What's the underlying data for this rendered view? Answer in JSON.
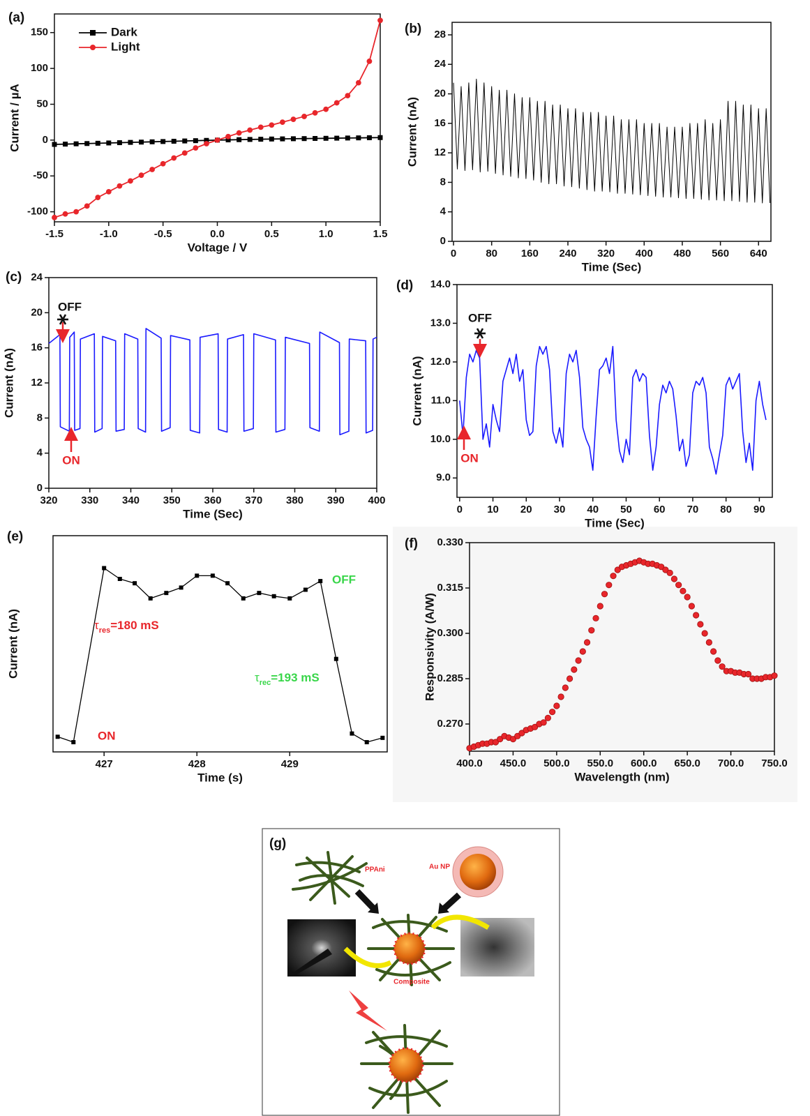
{
  "chart_data": [
    {
      "type": "line",
      "panel_label": "(a)",
      "x_label": "Voltage / V",
      "y_label": "Current / µA",
      "xlim": [
        -1.5,
        1.5
      ],
      "ylim": [
        -114,
        176
      ],
      "xticks": [
        -1.5,
        {
          "value": -1,
          "label": "-1.0"
        },
        -0.5,
        {
          "value": 0,
          "label": "0.0"
        },
        0.5,
        {
          "value": 1,
          "label": "1.0"
        },
        1.5
      ],
      "yticks": [
        -100,
        -50,
        0,
        50,
        100,
        150
      ],
      "legend": "upper left",
      "x": [
        -1.5,
        -1.4,
        -1.3,
        -1.2,
        -1.1,
        -1.0,
        -0.9,
        -0.8,
        -0.7,
        -0.6,
        -0.5,
        -0.4,
        -0.3,
        -0.2,
        -0.1,
        0,
        0.1,
        0.2,
        0.3,
        0.4,
        0.5,
        0.6,
        0.7,
        0.8,
        0.9,
        1.0,
        1.1,
        1.2,
        1.3,
        1.4,
        1.5
      ],
      "series": [
        {
          "name": "Dark",
          "color": "#000000",
          "marker": "square",
          "values": [
            -6,
            -5.6,
            -5.2,
            -4.8,
            -4.4,
            -4,
            -3.6,
            -3.2,
            -2.8,
            -2.4,
            -2,
            -1.6,
            -1.2,
            -0.8,
            -0.4,
            0,
            0.3,
            0.6,
            0.9,
            1.2,
            1.5,
            1.7,
            1.9,
            2.1,
            2.3,
            2.5,
            2.7,
            2.9,
            3.1,
            3.3,
            3.5
          ]
        },
        {
          "name": "Light",
          "color": "#e8262b",
          "marker": "circle",
          "values": [
            -108,
            -103,
            -100,
            -92,
            -80,
            -72,
            -64,
            -57,
            -49,
            -41,
            -33,
            -25,
            -18,
            -11,
            -5,
            0,
            5,
            10,
            14,
            18,
            21,
            25,
            29,
            33,
            38,
            43,
            52,
            62,
            80,
            110,
            167
          ]
        }
      ]
    },
    {
      "type": "line",
      "panel_label": "(b)",
      "x_label": "Time (Sec)",
      "y_label": "Current (nA)",
      "xlim": [
        -3,
        666
      ],
      "ylim": [
        0,
        29.7
      ],
      "xticks": [
        0,
        80,
        160,
        240,
        320,
        400,
        480,
        560,
        640
      ],
      "yticks": [
        0,
        4,
        8,
        12,
        16,
        20,
        24,
        28
      ],
      "x": [
        0,
        8,
        16,
        24,
        32,
        40,
        48,
        56,
        64,
        72,
        80,
        88,
        96,
        104,
        112,
        120,
        128,
        136,
        144,
        152,
        160,
        168,
        176,
        184,
        192,
        200,
        208,
        216,
        224,
        232,
        240,
        248,
        256,
        264,
        272,
        280,
        288,
        296,
        304,
        312,
        320,
        328,
        336,
        344,
        352,
        360,
        368,
        376,
        384,
        392,
        400,
        408,
        416,
        424,
        432,
        440,
        448,
        456,
        464,
        472,
        480,
        488,
        496,
        504,
        512,
        520,
        528,
        536,
        544,
        552,
        560,
        568,
        576,
        584,
        592,
        600,
        608,
        616,
        624,
        632,
        640,
        648,
        656,
        664
      ],
      "series": [
        {
          "color": "#000000",
          "values": [
            21.5,
            9.8,
            21,
            9.6,
            21.5,
            9.7,
            22,
            9.4,
            21.5,
            9.5,
            21,
            9.2,
            20.5,
            9.0,
            20.5,
            8.8,
            20,
            8.6,
            19.5,
            8.5,
            19.5,
            8.3,
            19,
            8.0,
            19,
            7.8,
            18.5,
            7.8,
            18.5,
            7.5,
            18,
            7.4,
            18,
            7.2,
            17.5,
            7.0,
            17.5,
            6.8,
            17.5,
            6.8,
            17,
            6.7,
            17,
            6.5,
            16.5,
            6.5,
            16.5,
            6.4,
            16.5,
            6.3,
            16,
            6.2,
            16,
            6.1,
            16,
            6.0,
            15.5,
            6.0,
            15.5,
            5.9,
            15.5,
            5.8,
            16,
            5.8,
            16,
            5.7,
            16.5,
            5.6,
            16,
            5.6,
            16.5,
            5.5,
            19,
            5.5,
            19,
            5.4,
            18.5,
            5.3,
            18.5,
            5.3,
            18,
            5.2,
            18,
            5.2
          ]
        }
      ]
    },
    {
      "type": "line",
      "panel_label": "(c)",
      "x_label": "Time (Sec)",
      "y_label": "Current (nA)",
      "xlim": [
        320,
        400
      ],
      "ylim": [
        0,
        24
      ],
      "xticks": [
        320,
        330,
        340,
        350,
        360,
        370,
        380,
        390,
        400
      ],
      "yticks": [
        0,
        4,
        8,
        12,
        16,
        20,
        24
      ],
      "annotations": [
        {
          "text": "OFF",
          "color": "#111111"
        },
        {
          "text": "ON",
          "color": "#e8262b"
        }
      ],
      "x": [
        320,
        322.7,
        322.8,
        325.0,
        325.1,
        326.2,
        326.3,
        327.6,
        327.7,
        331.1,
        331.2,
        333.0,
        333.1,
        336.3,
        336.4,
        338.4,
        338.5,
        341.7,
        341.8,
        343.6,
        343.7,
        347.4,
        347.5,
        349.6,
        349.7,
        354.4,
        354.5,
        356.8,
        356.9,
        361.3,
        361.4,
        363.5,
        363.6,
        367.5,
        367.6,
        369.9,
        370.0,
        375.3,
        375.4,
        377.6,
        377.7,
        383.6,
        383.7,
        386.0,
        386.1,
        390.9,
        391.0,
        393.2,
        393.3,
        397.3,
        397.4,
        399.0,
        399.1,
        400
      ],
      "series": [
        {
          "color": "#1a1aff",
          "values": [
            16.5,
            17.5,
            7.0,
            6.5,
            17.2,
            17.8,
            6.6,
            6.8,
            17.0,
            17.6,
            6.4,
            6.8,
            17.3,
            16.8,
            6.5,
            6.7,
            17.6,
            17.0,
            6.8,
            6.4,
            18.2,
            17.1,
            6.5,
            6.9,
            17.4,
            16.9,
            6.6,
            6.3,
            17.2,
            17.6,
            6.7,
            6.4,
            17.0,
            17.5,
            6.5,
            6.8,
            17.6,
            16.9,
            6.4,
            6.7,
            17.2,
            16.5,
            6.9,
            6.5,
            17.8,
            16.6,
            6.1,
            6.5,
            17.0,
            16.8,
            6.3,
            6.6,
            17.0,
            17.2
          ]
        }
      ]
    },
    {
      "type": "line",
      "panel_label": "(d)",
      "x_label": "Time (Sec)",
      "y_label": "Current (nA)",
      "xlim": [
        -0.8,
        93.9
      ],
      "ylim": [
        8.5,
        14.0
      ],
      "xticks": [
        0,
        10,
        20,
        30,
        40,
        50,
        60,
        70,
        80,
        90
      ],
      "yticks": [
        {
          "value": 9,
          "label": "9.0"
        },
        {
          "value": 10,
          "label": "10.0"
        },
        {
          "value": 11,
          "label": "11.0"
        },
        {
          "value": 12,
          "label": "12.0"
        },
        {
          "value": 13,
          "label": "13.0"
        },
        {
          "value": 14,
          "label": "14.0"
        }
      ],
      "annotations": [
        {
          "text": "OFF",
          "color": "#111111"
        },
        {
          "text": "ON",
          "color": "#e8262b"
        }
      ],
      "x": [
        0,
        1,
        2,
        3,
        4,
        5,
        6,
        7,
        8,
        9,
        10,
        11,
        12,
        13,
        14,
        15,
        16,
        17,
        18,
        19,
        20,
        21,
        22,
        23,
        24,
        25,
        26,
        27,
        28,
        29,
        30,
        31,
        32,
        33,
        34,
        35,
        36,
        37,
        38,
        39,
        40,
        41,
        42,
        43,
        44,
        45,
        46,
        47,
        48,
        49,
        50,
        51,
        52,
        53,
        54,
        55,
        56,
        57,
        58,
        59,
        60,
        61,
        62,
        63,
        64,
        65,
        66,
        67,
        68,
        69,
        70,
        71,
        72,
        73,
        74,
        75,
        76,
        77,
        78,
        79,
        80,
        81,
        82,
        83,
        84,
        85,
        86,
        87,
        88,
        89,
        90,
        91,
        92
      ],
      "series": [
        {
          "color": "#1a1aff",
          "values": [
            11.0,
            10.1,
            11.6,
            12.2,
            12.0,
            12.3,
            12.1,
            10.0,
            10.4,
            9.8,
            10.9,
            10.5,
            10.2,
            11.5,
            11.8,
            12.1,
            11.7,
            12.2,
            11.5,
            11.8,
            10.5,
            10.1,
            10.2,
            11.9,
            12.4,
            12.2,
            12.4,
            11.8,
            10.2,
            9.9,
            10.3,
            9.8,
            11.7,
            12.2,
            12.0,
            12.3,
            11.6,
            10.3,
            10.0,
            9.8,
            9.2,
            10.6,
            11.8,
            11.9,
            12.1,
            11.7,
            12.4,
            10.5,
            9.7,
            9.4,
            10.0,
            9.6,
            11.6,
            11.8,
            11.5,
            11.7,
            11.6,
            10.1,
            9.2,
            9.8,
            10.9,
            11.4,
            11.2,
            11.5,
            11.3,
            10.6,
            9.7,
            10.0,
            9.3,
            9.6,
            11.2,
            11.5,
            11.4,
            11.6,
            11.2,
            9.8,
            9.5,
            9.1,
            9.6,
            10.1,
            11.4,
            11.6,
            11.3,
            11.5,
            11.7,
            10.2,
            9.4,
            9.9,
            9.2,
            11.0,
            11.5,
            10.9,
            10.5
          ]
        }
      ]
    },
    {
      "type": "line",
      "panel_label": "(e)",
      "x_label": "Time (s)",
      "y_label": "Current (nA)",
      "xlim": [
        426.45,
        430.05
      ],
      "ylim": [
        0,
        1
      ],
      "xticks": [
        427,
        428,
        429
      ],
      "annotations": [
        {
          "text": "ON",
          "color": "#e8262b"
        },
        {
          "text": "OFF",
          "color": "#39d64a"
        },
        {
          "symbol": "τ",
          "sub": "res",
          "text": "=180 mS",
          "color": "#e8262b"
        },
        {
          "symbol": "τ",
          "sub": "rec",
          "text": "=193 mS",
          "color": "#39d64a"
        }
      ],
      "x": [
        426.5,
        426.67,
        427.0,
        427.17,
        427.33,
        427.5,
        427.67,
        427.83,
        428.0,
        428.17,
        428.33,
        428.5,
        428.67,
        428.83,
        429.0,
        429.17,
        429.33,
        429.5,
        429.67,
        429.83,
        430.0
      ],
      "series": [
        {
          "color": "#000000",
          "marker": "square",
          "values": [
            0.07,
            0.045,
            0.85,
            0.8,
            0.78,
            0.71,
            0.735,
            0.76,
            0.815,
            0.815,
            0.78,
            0.71,
            0.735,
            0.72,
            0.71,
            0.75,
            0.79,
            0.43,
            0.085,
            0.045,
            0.065
          ]
        }
      ]
    },
    {
      "type": "scatter",
      "panel_label": "(f)",
      "x_label": "Wavelength (nm)",
      "y_label": "Responsivity (A/W)",
      "xlim": [
        400,
        750
      ],
      "ylim": [
        0.261,
        0.33
      ],
      "xticks": [
        {
          "value": 400,
          "label": "400.0"
        },
        {
          "value": 450,
          "label": "450.0"
        },
        {
          "value": 500,
          "label": "500.0"
        },
        {
          "value": 550,
          "label": "550.0"
        },
        {
          "value": 600,
          "label": "600.0"
        },
        {
          "value": 650,
          "label": "650.0"
        },
        {
          "value": 700,
          "label": "700.0"
        },
        {
          "value": 750,
          "label": "750.0"
        }
      ],
      "yticks": [
        {
          "value": 0.27,
          "label": "0.270"
        },
        0.285,
        {
          "value": 0.3,
          "label": "0.300"
        },
        0.315,
        {
          "value": 0.33,
          "label": "0.330"
        }
      ],
      "x": [
        400,
        405,
        410,
        415,
        420,
        425,
        430,
        435,
        440,
        445,
        450,
        455,
        460,
        465,
        470,
        475,
        480,
        485,
        490,
        495,
        500,
        505,
        510,
        515,
        520,
        525,
        530,
        535,
        540,
        545,
        550,
        555,
        560,
        565,
        570,
        575,
        580,
        585,
        590,
        595,
        600,
        605,
        610,
        615,
        620,
        625,
        630,
        635,
        640,
        645,
        650,
        655,
        660,
        665,
        670,
        675,
        680,
        685,
        690,
        695,
        700,
        705,
        710,
        715,
        720,
        725,
        730,
        735,
        740,
        745,
        750
      ],
      "series": [
        {
          "color": "#e8262b",
          "marker": "circle",
          "values": [
            0.262,
            0.2625,
            0.263,
            0.2635,
            0.2635,
            0.264,
            0.264,
            0.265,
            0.266,
            0.2655,
            0.265,
            0.266,
            0.267,
            0.268,
            0.2685,
            0.269,
            0.27,
            0.2705,
            0.272,
            0.274,
            0.276,
            0.279,
            0.282,
            0.285,
            0.288,
            0.291,
            0.294,
            0.297,
            0.301,
            0.305,
            0.309,
            0.313,
            0.316,
            0.319,
            0.321,
            0.322,
            0.3225,
            0.323,
            0.3235,
            0.324,
            0.3235,
            0.323,
            0.323,
            0.3225,
            0.322,
            0.321,
            0.32,
            0.318,
            0.316,
            0.314,
            0.312,
            0.309,
            0.306,
            0.303,
            0.3,
            0.297,
            0.294,
            0.291,
            0.289,
            0.2875,
            0.2875,
            0.287,
            0.287,
            0.2865,
            0.2865,
            0.285,
            0.285,
            0.285,
            0.2855,
            0.2855,
            0.286
          ]
        }
      ]
    }
  ],
  "diagram": {
    "panel_label": "(g)",
    "labels": [
      "PPAni",
      "Au NP",
      "Composite"
    ]
  }
}
